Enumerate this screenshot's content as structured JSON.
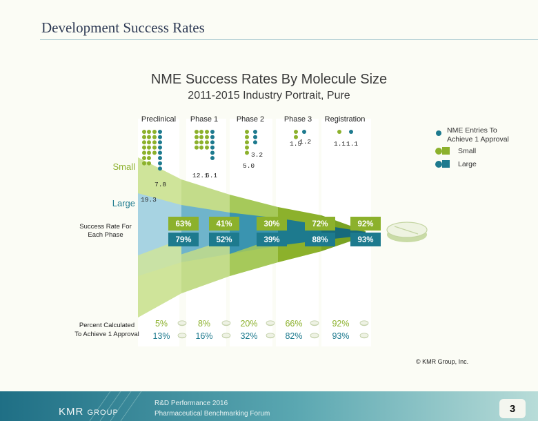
{
  "slide": {
    "title": "Development Success Rates"
  },
  "chart_data": {
    "type": "funnel",
    "title": "NME Success Rates By Molecule Size",
    "subtitle": "2011-2015 Industry Portrait, Pure",
    "phases": [
      "Preclinical",
      "Phase 1",
      "Phase 2",
      "Phase 3",
      "Registration"
    ],
    "row_labels": {
      "small": "Small",
      "large": "Large",
      "success_rate": "Success Rate For\nEach Phase",
      "percent_calc": "Percent Calculated\nTo Achieve 1 Approval"
    },
    "series": [
      {
        "name": "Small",
        "color": "#8cb12c",
        "entries": [
          19.3,
          12.1,
          5.0,
          1.5,
          1.1
        ],
        "entries_text": [
          "19.3",
          "12.1",
          "5.0",
          "1.5",
          "1.1"
        ],
        "success_rate": [
          "63%",
          "41%",
          "30%",
          "72%",
          "92%"
        ],
        "percent_to_approval": [
          "5%",
          "8%",
          "20%",
          "66%",
          "92%"
        ]
      },
      {
        "name": "Large",
        "color": "#1d7a8e",
        "entries": [
          7.8,
          6.1,
          3.2,
          1.2,
          1.1
        ],
        "entries_text": [
          "7.8",
          "6.1",
          "3.2",
          "1.2",
          "1.1"
        ],
        "success_rate": [
          "79%",
          "52%",
          "39%",
          "88%",
          "93%"
        ],
        "percent_to_approval": [
          "13%",
          "16%",
          "32%",
          "82%",
          "93%"
        ]
      }
    ],
    "legend": {
      "entries": "NME Entries To\nAchieve 1 Approval",
      "small": "Small",
      "large": "Large"
    }
  },
  "copyright": "© KMR Group, Inc.",
  "footer": {
    "line1": "R&D Performance 2016",
    "line2": "Pharmaceutical Benchmarking Forum",
    "logo": "KMR",
    "logo_suffix": "GROUP",
    "page": "3"
  },
  "colors": {
    "small": "#8cb12c",
    "large": "#1d7a8e"
  }
}
